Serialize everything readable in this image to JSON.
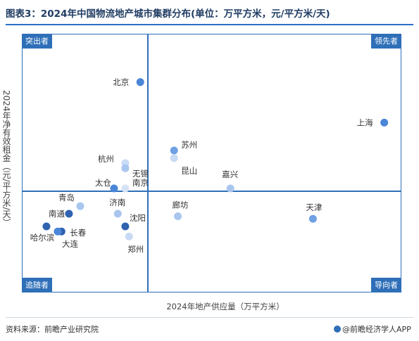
{
  "title": "图表3：2024年中国物流地产城市集群分布(单位：万平方米，元/平方米/天)",
  "source": "资料来源：前瞻产业研究院",
  "brand": "@前瞻经济学人APP",
  "chart_data": {
    "type": "scatter",
    "xlabel": "2024年地产供应量（万平方米）",
    "ylabel": "2024年净有效租金（元/平方米/天）",
    "quadrants": {
      "top_left": "突出者",
      "top_right": "领先者",
      "bottom_left": "追随者",
      "bottom_right": "导向者"
    },
    "points": [
      {
        "name": "北京",
        "x": 0.31,
        "y": 0.82,
        "color": "#4a86d8"
      },
      {
        "name": "上海",
        "x": 0.96,
        "y": 0.66,
        "color": "#4a86d8"
      },
      {
        "name": "苏州",
        "x": 0.4,
        "y": 0.55,
        "color": "#6fa0e4"
      },
      {
        "name": "昆山",
        "x": 0.4,
        "y": 0.52,
        "color": "#c9daf5"
      },
      {
        "name": "嘉兴",
        "x": 0.55,
        "y": 0.4,
        "color": "#a9c6ef"
      },
      {
        "name": "杭州",
        "x": 0.27,
        "y": 0.5,
        "color": "#c9daf5"
      },
      {
        "name": "无锡",
        "x": 0.27,
        "y": 0.48,
        "color": "#a9c6ef"
      },
      {
        "name": "太仓",
        "x": 0.24,
        "y": 0.4,
        "color": "#4a86d8"
      },
      {
        "name": "南京",
        "x": 0.27,
        "y": 0.4,
        "color": "#d6e3f7"
      },
      {
        "name": "青岛",
        "x": 0.15,
        "y": 0.33,
        "color": "#a9c6ef"
      },
      {
        "name": "济南",
        "x": 0.25,
        "y": 0.3,
        "color": "#a9c6ef"
      },
      {
        "name": "南通",
        "x": 0.12,
        "y": 0.3,
        "color": "#2f62b0"
      },
      {
        "name": "廊坊",
        "x": 0.41,
        "y": 0.29,
        "color": "#a9c6ef"
      },
      {
        "name": "天津",
        "x": 0.77,
        "y": 0.28,
        "color": "#6fa0e4"
      },
      {
        "name": "沈阳",
        "x": 0.27,
        "y": 0.25,
        "color": "#2f62b0"
      },
      {
        "name": "哈尔滨",
        "x": 0.06,
        "y": 0.25,
        "color": "#2f62b0"
      },
      {
        "name": "长春",
        "x": 0.1,
        "y": 0.23,
        "color": "#2f62b0"
      },
      {
        "name": "大连",
        "x": 0.09,
        "y": 0.23,
        "color": "#4a86d8"
      },
      {
        "name": "郑州",
        "x": 0.28,
        "y": 0.21,
        "color": "#c9daf5"
      }
    ]
  }
}
